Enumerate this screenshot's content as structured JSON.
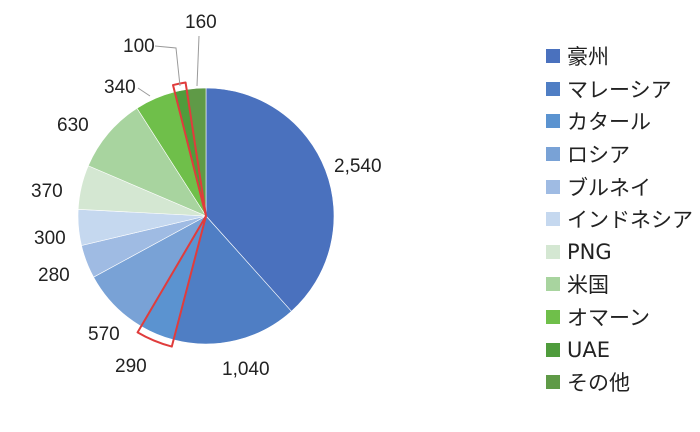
{
  "chart_data": {
    "type": "pie",
    "title": "",
    "categories": [
      "豪州",
      "マレーシア",
      "カタール",
      "ロシア",
      "ブルネイ",
      "インドネシア",
      "PNG",
      "米国",
      "オマーン",
      "UAE",
      "その他"
    ],
    "values": [
      2540,
      1040,
      290,
      570,
      280,
      300,
      370,
      630,
      340,
      100,
      160
    ],
    "data_labels": [
      "2,540",
      "1,040",
      "290",
      "570",
      "280",
      "300",
      "370",
      "630",
      "340",
      "100",
      "160"
    ],
    "colors": [
      "#4a71be",
      "#4f7ec4",
      "#5b93d0",
      "#79a2d6",
      "#9fbbe3",
      "#c5d8ef",
      "#d4e7d2",
      "#a8d49f",
      "#6fbf4a",
      "#4f9c3c",
      "#5f9a47"
    ],
    "highlighted": [
      "カタール",
      "UAE"
    ],
    "highlight_color": "#e03c3c",
    "legend_position": "right"
  }
}
